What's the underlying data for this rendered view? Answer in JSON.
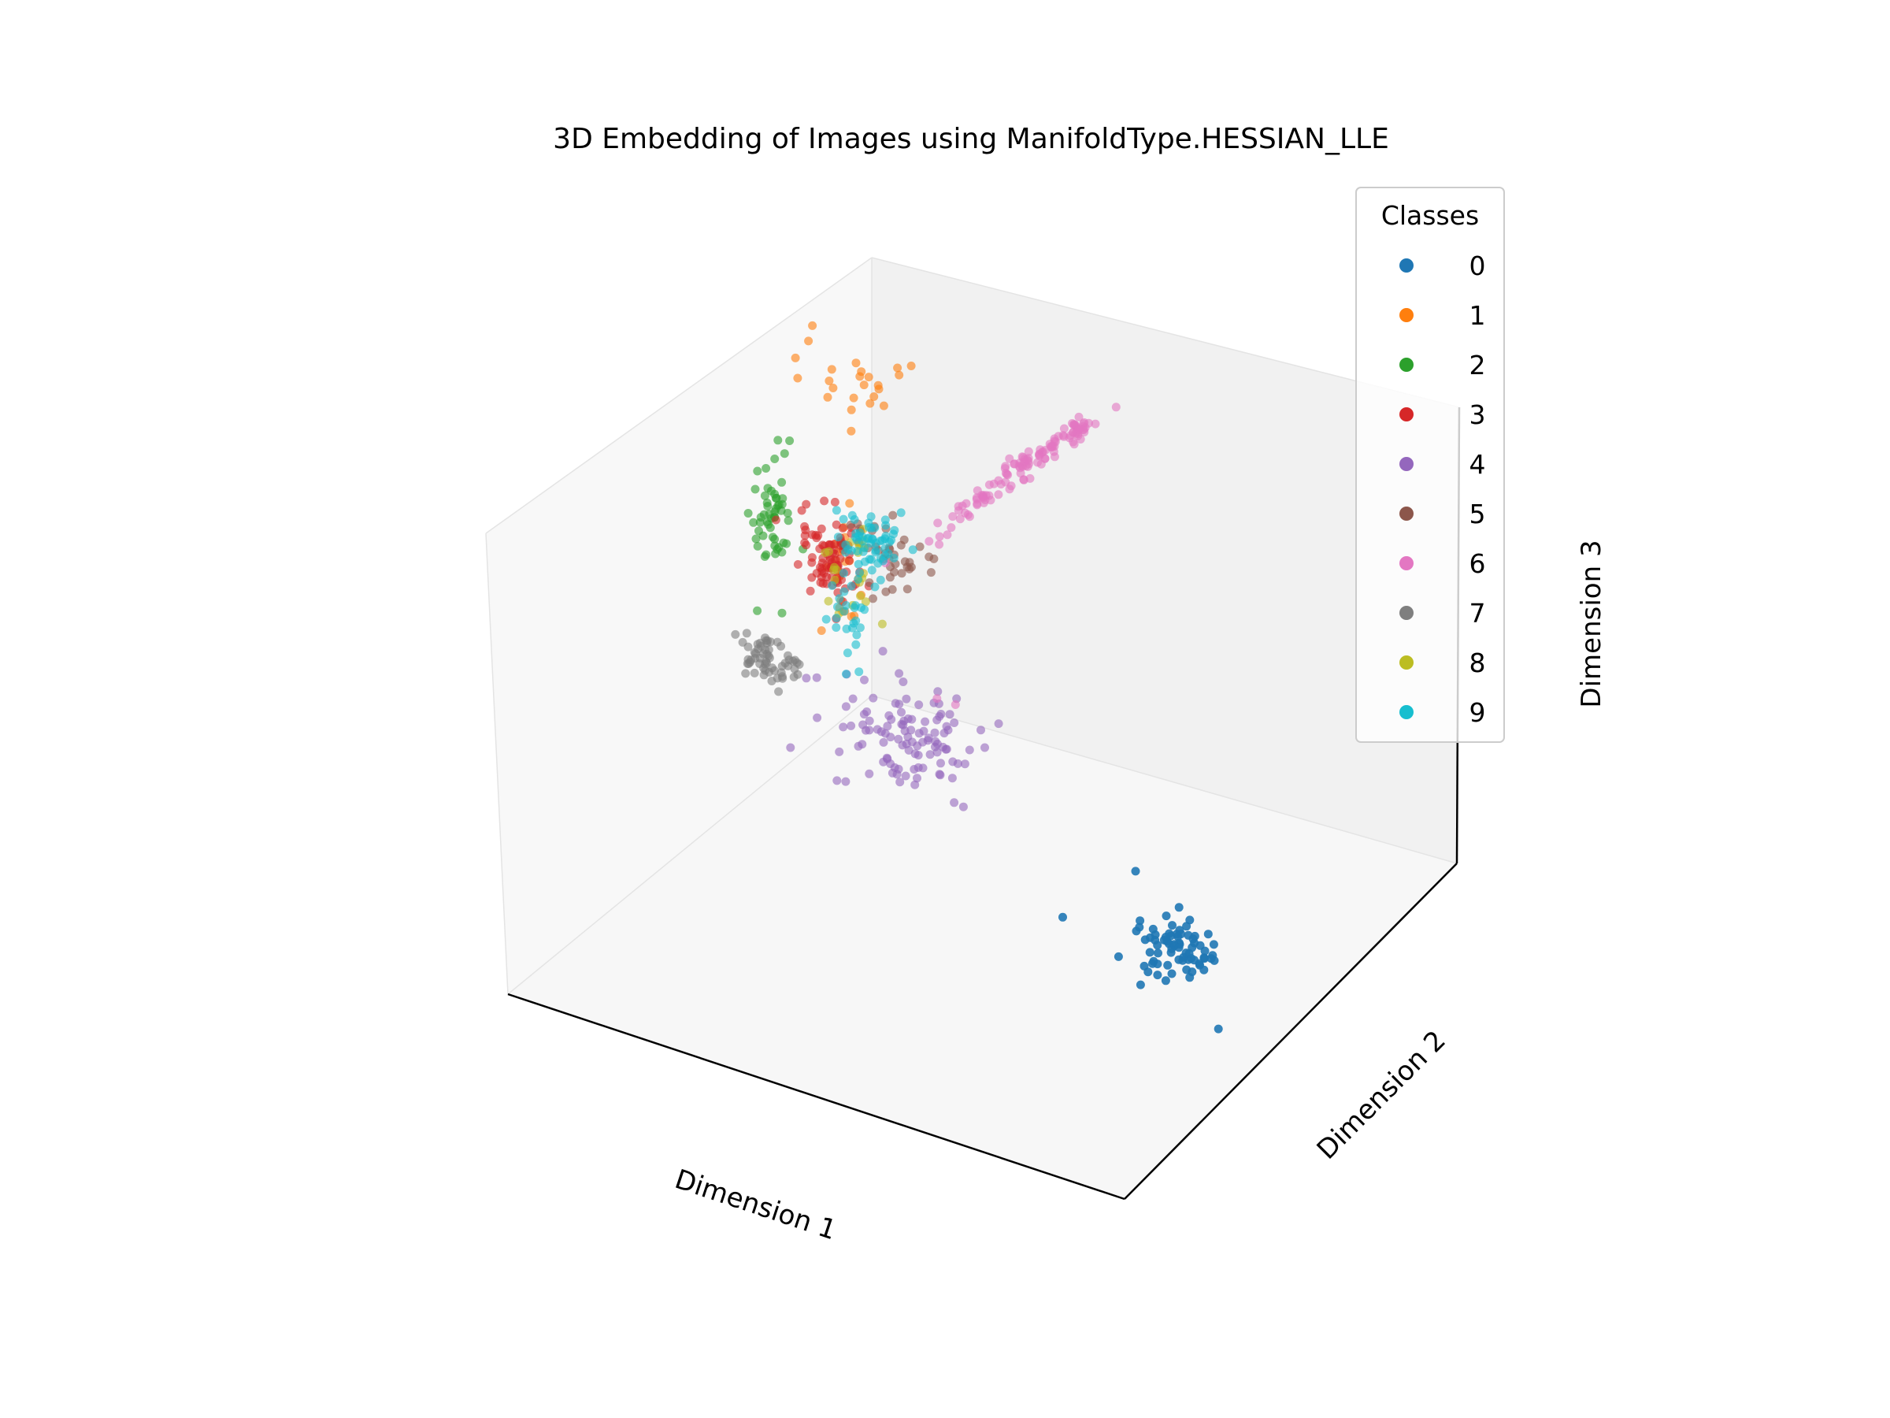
{
  "chart_data": {
    "type": "scatter3d",
    "title": "3D Embedding of Images using ManifoldType.HESSIAN_LLE",
    "xlabel": "Dimension 1",
    "ylabel": "Dimension 2",
    "zlabel": "Dimension 3",
    "tick_labels_visible": false,
    "grid": false,
    "legend": {
      "title": "Classes",
      "placement": "top-right"
    },
    "series": [
      {
        "name": "0",
        "color": "#1f77b4",
        "clusters": [
          {
            "center": [
              0.84,
              0.42,
              0.2
            ],
            "spread": [
              0.03,
              0.03,
              0.025
            ],
            "count": 70
          },
          {
            "points": [
              [
                0.72,
                0.52,
                0.25
              ],
              [
                0.76,
                0.4,
                0.16
              ],
              [
                0.93,
                0.38,
                0.24
              ],
              [
                0.95,
                0.35,
                0.12
              ],
              [
                0.64,
                0.45,
                0.16
              ]
            ]
          }
        ]
      },
      {
        "name": "1",
        "color": "#ff7f0e",
        "clusters": [
          {
            "center": [
              0.1,
              0.82,
              0.85
            ],
            "spread": [
              0.05,
              0.03,
              0.04
            ],
            "count": 24
          },
          {
            "center": [
              0.14,
              0.72,
              0.52
            ],
            "spread": [
              0.015,
              0.02,
              0.08
            ],
            "count": 22
          }
        ]
      },
      {
        "name": "2",
        "color": "#2ca02c",
        "clusters": [
          {
            "center": [
              0.07,
              0.65,
              0.64
            ],
            "spread": [
              0.012,
              0.02,
              0.06
            ],
            "count": 55
          }
        ]
      },
      {
        "name": "3",
        "color": "#d62728",
        "clusters": [
          {
            "center": [
              0.13,
              0.7,
              0.55
            ],
            "spread": [
              0.02,
              0.02,
              0.05
            ],
            "count": 90
          }
        ]
      },
      {
        "name": "4",
        "color": "#9467bd",
        "clusters": [
          {
            "center": [
              0.22,
              0.72,
              0.2
            ],
            "spread": [
              0.06,
              0.03,
              0.05
            ],
            "count": 110
          }
        ]
      },
      {
        "name": "5",
        "color": "#8c564b",
        "clusters": [
          {
            "center": [
              0.2,
              0.74,
              0.55
            ],
            "spread": [
              0.035,
              0.02,
              0.04
            ],
            "count": 38
          }
        ]
      },
      {
        "name": "6",
        "color": "#e377c2",
        "line": {
          "from": [
            0.26,
            0.75,
            0.62
          ],
          "to": [
            0.5,
            0.8,
            0.95
          ],
          "count": 120,
          "jitter": 0.01
        },
        "points": [
          [
            0.45,
            0.45,
            0.55
          ],
          [
            0.48,
            0.45,
            0.55
          ],
          [
            0.55,
            0.8,
            1.0
          ],
          [
            0.22,
            0.7,
            0.58
          ],
          [
            0.3,
            0.75,
            0.66
          ]
        ]
      },
      {
        "name": "7",
        "color": "#7f7f7f",
        "clusters": [
          {
            "center": [
              0.03,
              0.68,
              0.3
            ],
            "spread": [
              0.025,
              0.02,
              0.03
            ],
            "count": 60
          }
        ]
      },
      {
        "name": "8",
        "color": "#bcbd22",
        "clusters": [
          {
            "center": [
              0.15,
              0.72,
              0.52
            ],
            "spread": [
              0.02,
              0.02,
              0.04
            ],
            "count": 22
          }
        ]
      },
      {
        "name": "9",
        "color": "#17becf",
        "clusters": [
          {
            "center": [
              0.18,
              0.73,
              0.58
            ],
            "spread": [
              0.02,
              0.02,
              0.03
            ],
            "count": 60
          },
          {
            "center": [
              0.15,
              0.72,
              0.42
            ],
            "spread": [
              0.015,
              0.015,
              0.05
            ],
            "count": 25
          }
        ]
      }
    ]
  }
}
